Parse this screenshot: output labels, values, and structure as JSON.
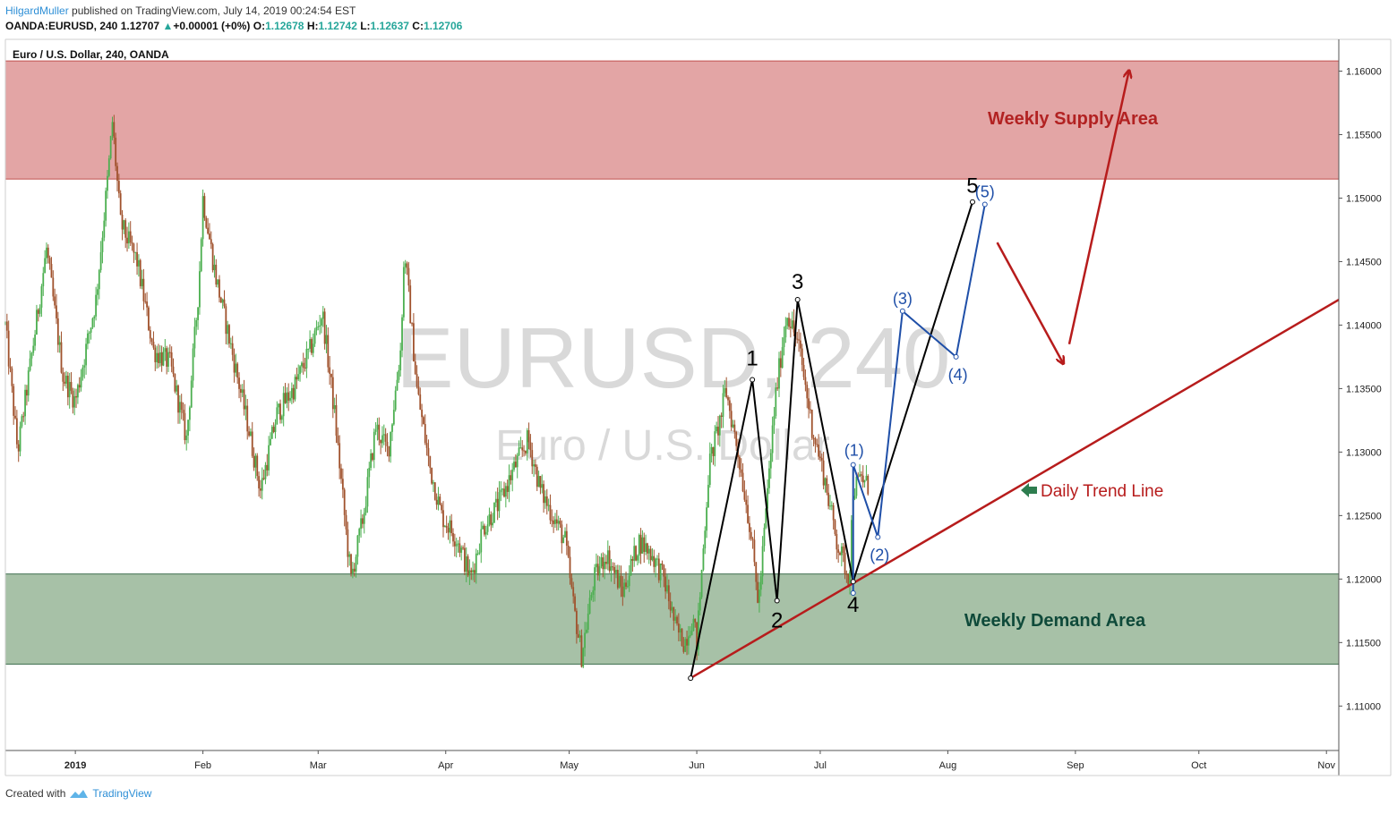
{
  "header": {
    "author": "HilgardMuller",
    "published_text": "published on TradingView.com, July 14, 2019 00:24:54 EST"
  },
  "quote": {
    "symbol": "OANDA:EURUSD, 240",
    "last": "1.12707",
    "change": "+0.00001 (+0%)",
    "o_label": "O:",
    "o_value": "1.12678",
    "h_label": "H:",
    "h_value": "1.12742",
    "l_label": "L:",
    "l_value": "1.12637",
    "c_label": "C:",
    "c_value": "1.12706"
  },
  "footer": {
    "created_with": "Created with",
    "brand": "TradingView"
  },
  "colors": {
    "supply_fill": "#e3a5a5",
    "supply_border": "#c0504d",
    "demand_fill": "#a7c1a7",
    "demand_border": "#3f6f4f",
    "up_candle": "#4caf50",
    "down_candle": "#a0522d",
    "trend": "#b71c1c",
    "wave_black": "#000000",
    "wave_blue": "#1f4fa8",
    "supply_text": "#b22222",
    "demand_text": "#0f4a3a",
    "watermark": "#d9d9d9"
  },
  "chart_data": {
    "type": "candlestick",
    "title": "Euro / U.S. Dollar, 240, OANDA",
    "watermark_symbol": "EURUSD, 240",
    "watermark_name": "Euro / U.S. Dollar",
    "y_ticks": [
      "1.16000",
      "1.15500",
      "1.15000",
      "1.14500",
      "1.14000",
      "1.13500",
      "1.13000",
      "1.12500",
      "1.12000",
      "1.11500",
      "1.11000"
    ],
    "ylim": [
      1.1065,
      1.1625
    ],
    "x_ticks": [
      "2019",
      "Feb",
      "Mar",
      "Apr",
      "May",
      "Jun",
      "Jul",
      "Aug",
      "Sep",
      "Oct",
      "Nov"
    ],
    "x_tick_days": [
      0,
      31,
      59,
      90,
      120,
      151,
      181,
      212,
      243,
      273,
      304
    ],
    "xlim_days": [
      -17,
      307
    ],
    "last_data_day": 193,
    "price_path": [
      [
        -17,
        1.14
      ],
      [
        -14,
        1.13
      ],
      [
        -10,
        1.139
      ],
      [
        -7,
        1.146
      ],
      [
        -3,
        1.136
      ],
      [
        0,
        1.134
      ],
      [
        5,
        1.142
      ],
      [
        8,
        1.152
      ],
      [
        9,
        1.156
      ],
      [
        11,
        1.148
      ],
      [
        15,
        1.145
      ],
      [
        19,
        1.138
      ],
      [
        23,
        1.137
      ],
      [
        27,
        1.131
      ],
      [
        30,
        1.143
      ],
      [
        31,
        1.15
      ],
      [
        34,
        1.144
      ],
      [
        38,
        1.138
      ],
      [
        42,
        1.132
      ],
      [
        45,
        1.127
      ],
      [
        49,
        1.133
      ],
      [
        53,
        1.135
      ],
      [
        57,
        1.138
      ],
      [
        60,
        1.141
      ],
      [
        63,
        1.133
      ],
      [
        66,
        1.123
      ],
      [
        67,
        1.12
      ],
      [
        70,
        1.125
      ],
      [
        73,
        1.132
      ],
      [
        76,
        1.13
      ],
      [
        79,
        1.138
      ],
      [
        80,
        1.146
      ],
      [
        83,
        1.135
      ],
      [
        86,
        1.129
      ],
      [
        89,
        1.125
      ],
      [
        93,
        1.123
      ],
      [
        96,
        1.12
      ],
      [
        99,
        1.124
      ],
      [
        103,
        1.126
      ],
      [
        107,
        1.129
      ],
      [
        110,
        1.131
      ],
      [
        113,
        1.127
      ],
      [
        116,
        1.125
      ],
      [
        119,
        1.123
      ],
      [
        121,
        1.118
      ],
      [
        123,
        1.114
      ],
      [
        126,
        1.12
      ],
      [
        129,
        1.122
      ],
      [
        133,
        1.119
      ],
      [
        137,
        1.123
      ],
      [
        140,
        1.122
      ],
      [
        143,
        1.12
      ],
      [
        146,
        1.116
      ],
      [
        148,
        1.115
      ],
      [
        150,
        1.117
      ],
      [
        151,
        1.115
      ],
      [
        154,
        1.129
      ],
      [
        157,
        1.133
      ],
      [
        158,
        1.135
      ],
      [
        161,
        1.13
      ],
      [
        164,
        1.124
      ],
      [
        166,
        1.118
      ],
      [
        168,
        1.126
      ],
      [
        170,
        1.134
      ],
      [
        172,
        1.139
      ],
      [
        173,
        1.141
      ],
      [
        176,
        1.138
      ],
      [
        179,
        1.132
      ],
      [
        182,
        1.128
      ],
      [
        185,
        1.123
      ],
      [
        187,
        1.121
      ],
      [
        188,
        1.12
      ],
      [
        189,
        1.127
      ],
      [
        191,
        1.128
      ],
      [
        193,
        1.1271
      ]
    ],
    "zones": [
      {
        "name": "Weekly Supply Area",
        "from": 1.1515,
        "to": 1.1608
      },
      {
        "name": "Weekly Demand Area",
        "from": 1.1133,
        "to": 1.1204
      }
    ],
    "trend_line": {
      "label": "Daily Trend Line",
      "points": [
        [
          149.5,
          1.1122
        ],
        [
          307,
          1.142
        ]
      ]
    },
    "wave_primary": {
      "points": [
        [
          149.5,
          1.1122
        ],
        [
          164.5,
          1.1357
        ],
        [
          170.5,
          1.1183
        ],
        [
          175.5,
          1.142
        ],
        [
          189,
          1.1198
        ],
        [
          218,
          1.1497
        ]
      ],
      "labels": [
        "1",
        "2",
        "3",
        "4",
        "5"
      ]
    },
    "wave_secondary": {
      "points": [
        [
          189,
          1.1189
        ],
        [
          189,
          1.129
        ],
        [
          195,
          1.1233
        ],
        [
          201,
          1.1411
        ],
        [
          214,
          1.1375
        ],
        [
          221,
          1.1495
        ]
      ],
      "labels": [
        "(1)",
        "(2)",
        "(3)",
        "(4)",
        "(5)"
      ]
    },
    "projection": [
      [
        224,
        1.1465
      ],
      [
        240,
        1.137
      ]
    ],
    "projection_up": [
      [
        241.5,
        1.1385
      ],
      [
        256,
        1.16
      ]
    ]
  }
}
